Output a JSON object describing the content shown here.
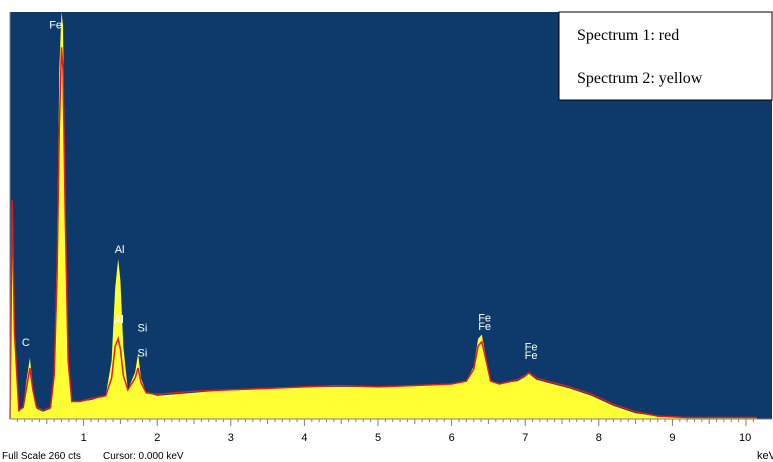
{
  "chart_data": {
    "type": "area",
    "xunit": "keV",
    "x_ticks": [
      "1",
      "2",
      "3",
      "4",
      "5",
      "6",
      "7",
      "8",
      "9",
      "10"
    ],
    "xlim": [
      0,
      10.15
    ],
    "ylim": [
      0,
      260
    ],
    "legend": {
      "placement": "top-right",
      "entries": [
        "Spectrum 1: red",
        "Spectrum 2: yellow"
      ]
    },
    "colors": {
      "background": "#0d3a6a",
      "spectrum1": "#e21b1b",
      "spectrum2": "#ffff33",
      "axis": "#808080"
    },
    "series": [
      {
        "name": "Spectrum 1",
        "color": "#e21b1b",
        "points": [
          [
            0,
            0
          ],
          [
            0.03,
            150
          ],
          [
            0.06,
            60
          ],
          [
            0.12,
            6
          ],
          [
            0.18,
            8
          ],
          [
            0.22,
            20
          ],
          [
            0.27,
            35
          ],
          [
            0.31,
            20
          ],
          [
            0.36,
            8
          ],
          [
            0.45,
            6
          ],
          [
            0.55,
            8
          ],
          [
            0.6,
            30
          ],
          [
            0.64,
            100
          ],
          [
            0.67,
            200
          ],
          [
            0.7,
            255
          ],
          [
            0.72,
            240
          ],
          [
            0.75,
            140
          ],
          [
            0.79,
            40
          ],
          [
            0.84,
            12
          ],
          [
            0.95,
            12
          ],
          [
            1.1,
            14
          ],
          [
            1.3,
            16
          ],
          [
            1.38,
            28
          ],
          [
            1.43,
            50
          ],
          [
            1.47,
            55
          ],
          [
            1.5,
            48
          ],
          [
            1.54,
            30
          ],
          [
            1.6,
            20
          ],
          [
            1.7,
            28
          ],
          [
            1.74,
            35
          ],
          [
            1.78,
            25
          ],
          [
            1.85,
            18
          ],
          [
            2.0,
            17
          ],
          [
            2.5,
            19
          ],
          [
            3.0,
            20
          ],
          [
            3.5,
            21
          ],
          [
            4.0,
            22
          ],
          [
            4.5,
            23
          ],
          [
            5.0,
            22
          ],
          [
            5.5,
            23
          ],
          [
            6.0,
            24
          ],
          [
            6.2,
            26
          ],
          [
            6.3,
            34
          ],
          [
            6.36,
            50
          ],
          [
            6.41,
            53
          ],
          [
            6.46,
            42
          ],
          [
            6.53,
            26
          ],
          [
            6.65,
            24
          ],
          [
            6.9,
            27
          ],
          [
            7.0,
            30
          ],
          [
            7.05,
            32
          ],
          [
            7.15,
            28
          ],
          [
            7.3,
            26
          ],
          [
            7.6,
            22
          ],
          [
            7.9,
            17
          ],
          [
            8.2,
            10
          ],
          [
            8.5,
            5
          ],
          [
            8.8,
            2
          ],
          [
            9.2,
            1
          ],
          [
            10.0,
            1
          ],
          [
            10.15,
            1
          ]
        ]
      },
      {
        "name": "Spectrum 2",
        "color": "#ffff33",
        "points": [
          [
            0,
            0
          ],
          [
            0.03,
            150
          ],
          [
            0.06,
            55
          ],
          [
            0.12,
            5
          ],
          [
            0.18,
            8
          ],
          [
            0.22,
            25
          ],
          [
            0.27,
            42
          ],
          [
            0.31,
            22
          ],
          [
            0.36,
            7
          ],
          [
            0.45,
            5
          ],
          [
            0.55,
            7
          ],
          [
            0.6,
            35
          ],
          [
            0.64,
            120
          ],
          [
            0.67,
            240
          ],
          [
            0.7,
            290
          ],
          [
            0.72,
            270
          ],
          [
            0.75,
            150
          ],
          [
            0.79,
            40
          ],
          [
            0.84,
            12
          ],
          [
            0.95,
            12
          ],
          [
            1.1,
            13
          ],
          [
            1.3,
            16
          ],
          [
            1.38,
            40
          ],
          [
            1.43,
            90
          ],
          [
            1.47,
            110
          ],
          [
            1.5,
            95
          ],
          [
            1.54,
            50
          ],
          [
            1.6,
            20
          ],
          [
            1.7,
            32
          ],
          [
            1.74,
            45
          ],
          [
            1.78,
            28
          ],
          [
            1.85,
            18
          ],
          [
            2.0,
            16
          ],
          [
            2.5,
            18
          ],
          [
            3.0,
            20
          ],
          [
            3.5,
            21
          ],
          [
            4.0,
            22
          ],
          [
            4.5,
            22
          ],
          [
            5.0,
            22
          ],
          [
            5.5,
            23
          ],
          [
            6.0,
            24
          ],
          [
            6.2,
            26
          ],
          [
            6.3,
            36
          ],
          [
            6.36,
            55
          ],
          [
            6.41,
            58
          ],
          [
            6.46,
            44
          ],
          [
            6.53,
            26
          ],
          [
            6.65,
            24
          ],
          [
            6.9,
            26
          ],
          [
            7.0,
            29
          ],
          [
            7.05,
            31
          ],
          [
            7.15,
            27
          ],
          [
            7.3,
            25
          ],
          [
            7.6,
            21
          ],
          [
            7.9,
            16
          ],
          [
            8.2,
            9
          ],
          [
            8.5,
            4
          ],
          [
            8.8,
            2
          ],
          [
            9.2,
            1
          ],
          [
            10.0,
            1
          ],
          [
            10.15,
            1
          ]
        ]
      }
    ],
    "peak_labels": [
      {
        "text": "C",
        "x": 0.23,
        "y": 50
      },
      {
        "text": "Fe",
        "x": 0.72,
        "y": 310
      },
      {
        "text": "Fe",
        "x": 0.68,
        "y": 288
      },
      {
        "text": "Fe",
        "x": 0.75,
        "y": 288
      },
      {
        "text": "Fe",
        "x": 0.6,
        "y": 290
      },
      {
        "text": "Fe",
        "x": 0.6,
        "y": 268
      },
      {
        "text": "Al",
        "x": 1.49,
        "y": 114
      },
      {
        "text": "Al",
        "x": 1.48,
        "y": 66
      },
      {
        "text": "Si",
        "x": 1.8,
        "y": 60
      },
      {
        "text": "Si",
        "x": 1.8,
        "y": 43
      },
      {
        "text": "Fe",
        "x": 6.43,
        "y": 67
      },
      {
        "text": "Fe",
        "x": 6.43,
        "y": 61
      },
      {
        "text": "Fe",
        "x": 7.06,
        "y": 47
      },
      {
        "text": "Fe",
        "x": 7.06,
        "y": 41
      }
    ]
  },
  "status": {
    "full_scale": "Full Scale 260 cts",
    "cursor": "Cursor: 0.000 keV"
  }
}
